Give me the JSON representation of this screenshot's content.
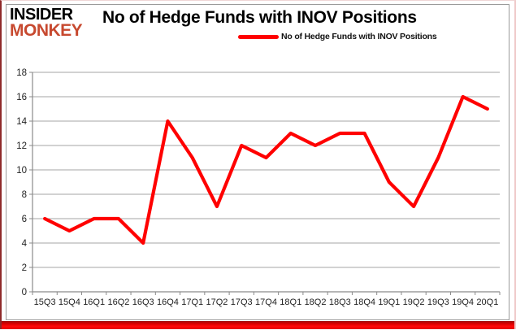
{
  "logo": {
    "line1": "INSIDER",
    "line2": "MONKEY",
    "monkey_color": "#c7492f"
  },
  "header": {
    "title": "No of Hedge Funds with INOV Positions"
  },
  "legend": {
    "label": "No of Hedge Funds with INOV Positions",
    "line_color": "#ff0000"
  },
  "chart_data": {
    "type": "line",
    "title": "No of Hedge Funds with INOV Positions",
    "categories": [
      "15Q3",
      "15Q4",
      "16Q1",
      "16Q2",
      "16Q3",
      "16Q4",
      "17Q1",
      "17Q2",
      "17Q3",
      "17Q4",
      "18Q1",
      "18Q2",
      "18Q3",
      "18Q4",
      "19Q1",
      "19Q2",
      "19Q3",
      "19Q4",
      "20Q1"
    ],
    "series": [
      {
        "name": "No of Hedge Funds with INOV Positions",
        "values": [
          6,
          5,
          6,
          6,
          4,
          14,
          11,
          7,
          12,
          11,
          13,
          12,
          13,
          13,
          9,
          7,
          11,
          16,
          15
        ]
      }
    ],
    "ylim": [
      0,
      18
    ],
    "ytick_step": 2,
    "yticks": [
      0,
      2,
      4,
      6,
      8,
      10,
      12,
      14,
      16,
      18
    ],
    "grid": true,
    "legend_position": "top-center",
    "xlabel": "",
    "ylabel": "",
    "line_color": "#ff0000",
    "grid_color": "#a6a6a6",
    "axis_color": "#8a8a8a",
    "label_color": "#1f1f1f"
  }
}
